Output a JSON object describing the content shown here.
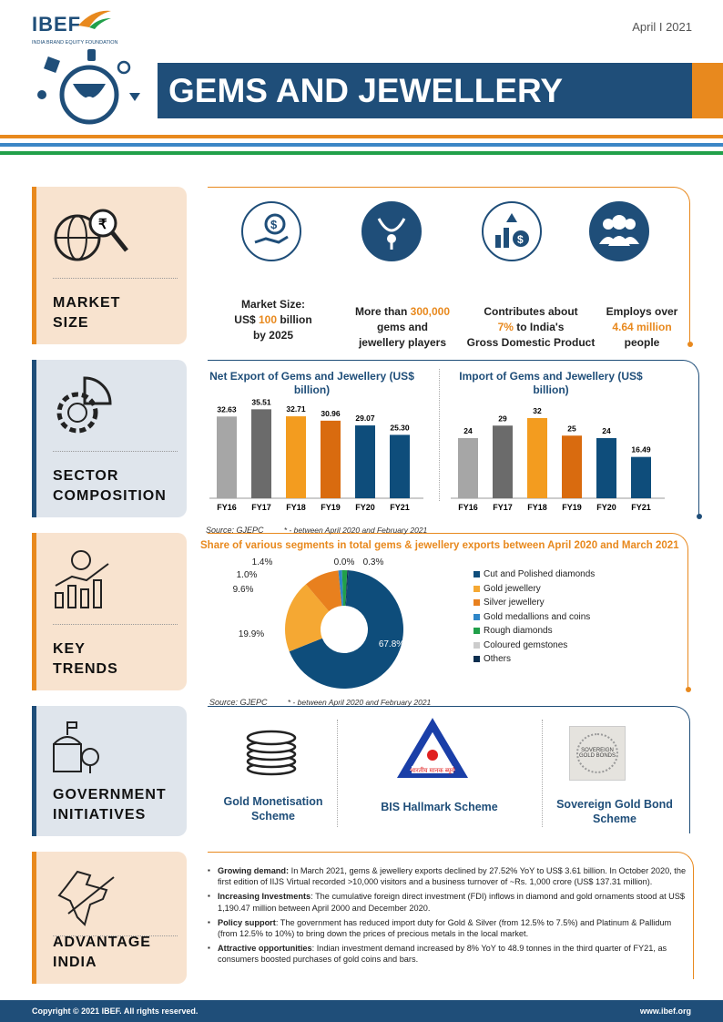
{
  "header": {
    "logo": "IBEF",
    "logo_sub": "INDIA BRAND EQUITY FOUNDATION",
    "date": "April  I  2021",
    "title": "GEMS AND JEWELLERY"
  },
  "colors": {
    "blue": "#1f4e79",
    "orange": "#e8891e",
    "green": "#21a04a",
    "light_blue": "#3b86c6",
    "peach": "#f8e3cf",
    "gray_blue": "#dfe5ec"
  },
  "sections": {
    "market": "MARKET SIZE",
    "sector": "SECTOR COMPOSITION",
    "trends": "KEY TRENDS",
    "gov": "GOVERNMENT INITIATIVES",
    "adv": "ADVANTAGE INDIA"
  },
  "market": {
    "m1a": "Market Size:",
    "m1b": "US$ ",
    "m1c": "100",
    "m1d": " billion",
    "m1e": "by 2025",
    "m2a": "More than ",
    "m2b": "300,000",
    "m2c": "gems and",
    "m2d": "jewellery players",
    "m3a": "Contributes about",
    "m3b": "7%",
    "m3c": " to India's",
    "m3d": "Gross Domestic Product",
    "m4a": "Employs over",
    "m4b": "4.64 million",
    "m4c": "people"
  },
  "chart_data": [
    {
      "type": "bar",
      "title": "Net Export of Gems and Jewellery (US$ billion)",
      "categories": [
        "FY16",
        "FY17",
        "FY18",
        "FY19",
        "FY20",
        "FY21"
      ],
      "values": [
        32.63,
        35.51,
        32.71,
        30.96,
        29.07,
        25.3
      ],
      "labels": [
        "32.63",
        "35.51",
        "32.71",
        "30.96",
        "29.07",
        "25.30"
      ],
      "colors": [
        "#a6a6a6",
        "#6b6b6b",
        "#f39c1f",
        "#d96b0f",
        "#0e4d7b",
        "#0e4d7b"
      ]
    },
    {
      "type": "bar",
      "title": "Import of Gems and Jewellery (US$ billion)",
      "categories": [
        "FY16",
        "FY17",
        "FY18",
        "FY19",
        "FY20",
        "FY21"
      ],
      "values": [
        24,
        29,
        32,
        25,
        24,
        16.49
      ],
      "labels": [
        "24",
        "29",
        "32",
        "25",
        "24",
        "16.49"
      ],
      "colors": [
        "#a6a6a6",
        "#6b6b6b",
        "#f39c1f",
        "#d96b0f",
        "#0e4d7b",
        "#0e4d7b"
      ]
    },
    {
      "type": "pie",
      "donut": true,
      "title": "Share of various segments in total gems & jewellery exports between April 2020 and March 2021",
      "series": [
        {
          "name": "Cut and Polished diamonds",
          "value": 67.8,
          "label": "67.8%",
          "color": "#0e4d7b"
        },
        {
          "name": "Gold jewellery",
          "value": 19.9,
          "label": "19.9%",
          "color": "#f5a833"
        },
        {
          "name": "Silver jewellery",
          "value": 9.6,
          "label": "9.6%",
          "color": "#e8801e"
        },
        {
          "name": "Gold medallions and coins",
          "value": 1.0,
          "label": "1.0%",
          "color": "#2e86c8"
        },
        {
          "name": "Rough diamonds",
          "value": 1.4,
          "label": "1.4%",
          "color": "#21a04a"
        },
        {
          "name": "Coloured gemstones",
          "value": 0.0,
          "label": "0.0%",
          "color": "#cccccc"
        },
        {
          "name": "Others",
          "value": 0.3,
          "label": "0.3%",
          "color": "#0b2e4f"
        }
      ],
      "legend": "right"
    }
  ],
  "source": "Source: GJEPC",
  "note": "* - between April 2020 and February 2021",
  "gov": {
    "g1a": "Gold Monetisation",
    "g1b": "Scheme",
    "g2": "BIS Hallmark Scheme",
    "g3a": "Sovereign Gold Bond",
    "g3b": "Scheme",
    "hallmark_logo_text": "भारतीय मानक ब्यूरो",
    "sgb_logo_text": "SOVEREIGN GOLD BONDS"
  },
  "advantage": [
    {
      "b": "Growing demand:",
      "t": " In March 2021, gems & jewellery exports declined by 27.52% YoY to US$ 3.61 billion. In October 2020, the first edition of IIJS Virtual recorded >10,000 visitors and a business turnover of ~Rs. 1,000 crore (US$ 137.31 million)."
    },
    {
      "b": "Increasing Investments",
      "t": ": The cumulative foreign direct investment (FDI) inflows in diamond and gold ornaments stood at US$ 1,190.47 million between April 2000 and December 2020."
    },
    {
      "b": "Policy support",
      "t": ": The government has reduced import duty for Gold & Silver (from 12.5% to 7.5%) and Platinum & Pallidum (from 12.5% to 10%) to bring down the prices of precious metals in the local market."
    },
    {
      "b": "Attractive  opportunities",
      "t": ": Indian investment demand increased by 8% YoY to 48.9 tonnes in the third quarter of FY21, as consumers boosted purchases of gold coins and bars."
    }
  ],
  "footer": {
    "copyright": "Copyright © 2021 IBEF. All rights reserved.",
    "site": "www.ibef.org"
  }
}
